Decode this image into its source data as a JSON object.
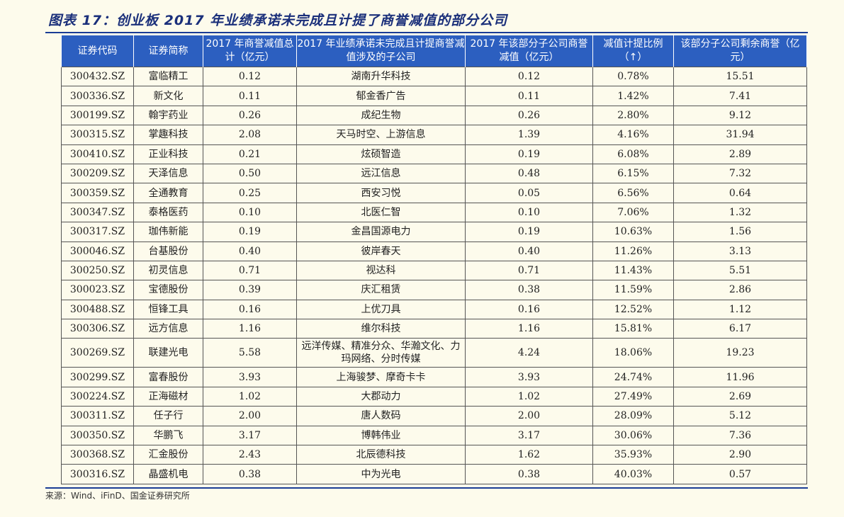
{
  "title": "图表 17：创业板 2017 年业绩承诺未完成且计提了商誉减值的部分公司",
  "headers": [
    "证券代码",
    "证券简称",
    "2017 年商誉减值总计（亿元）",
    "2017 年业绩承诺未完成且计提商誉减值涉及的子公司",
    "2017 年该部分子公司商誉减值（亿元）",
    "减值计提比例（↑）",
    "该部分子公司剩余商誉（亿元）"
  ],
  "rows": [
    [
      "300432.SZ",
      "富临精工",
      "0.12",
      "湖南升华科技",
      "0.12",
      "0.78%",
      "15.51"
    ],
    [
      "300336.SZ",
      "新文化",
      "0.11",
      "郁金香广告",
      "0.11",
      "1.42%",
      "7.41"
    ],
    [
      "300199.SZ",
      "翰宇药业",
      "0.26",
      "成纪生物",
      "0.26",
      "2.80%",
      "9.12"
    ],
    [
      "300315.SZ",
      "掌趣科技",
      "2.08",
      "天马时空、上游信息",
      "1.39",
      "4.16%",
      "31.94"
    ],
    [
      "300410.SZ",
      "正业科技",
      "0.21",
      "炫硕智造",
      "0.19",
      "6.08%",
      "2.89"
    ],
    [
      "300209.SZ",
      "天泽信息",
      "0.50",
      "远江信息",
      "0.48",
      "6.15%",
      "7.32"
    ],
    [
      "300359.SZ",
      "全通教育",
      "0.25",
      "西安习悦",
      "0.05",
      "6.56%",
      "0.64"
    ],
    [
      "300347.SZ",
      "泰格医药",
      "0.10",
      "北医仁智",
      "0.10",
      "7.06%",
      "1.32"
    ],
    [
      "300317.SZ",
      "珈伟新能",
      "0.19",
      "金昌国源电力",
      "0.19",
      "10.63%",
      "1.56"
    ],
    [
      "300046.SZ",
      "台基股份",
      "0.40",
      "彼岸春天",
      "0.40",
      "11.26%",
      "3.13"
    ],
    [
      "300250.SZ",
      "初灵信息",
      "0.71",
      "视达科",
      "0.71",
      "11.43%",
      "5.51"
    ],
    [
      "300023.SZ",
      "宝德股份",
      "0.39",
      "庆汇租赁",
      "0.38",
      "11.59%",
      "2.86"
    ],
    [
      "300488.SZ",
      "恒锋工具",
      "0.16",
      "上优刀具",
      "0.16",
      "12.52%",
      "1.12"
    ],
    [
      "300306.SZ",
      "远方信息",
      "1.16",
      "维尔科技",
      "1.16",
      "15.81%",
      "6.17"
    ],
    [
      "300269.SZ",
      "联建光电",
      "5.58",
      "远洋传媒、精准分众、华瀚文化、力玛网络、分时传媒",
      "4.24",
      "18.06%",
      "19.23"
    ],
    [
      "300299.SZ",
      "富春股份",
      "3.93",
      "上海骏梦、摩奇卡卡",
      "3.93",
      "24.74%",
      "11.96"
    ],
    [
      "300224.SZ",
      "正海磁材",
      "1.02",
      "大郡动力",
      "1.02",
      "27.49%",
      "2.69"
    ],
    [
      "300311.SZ",
      "任子行",
      "2.00",
      "唐人数码",
      "2.00",
      "28.09%",
      "5.12"
    ],
    [
      "300350.SZ",
      "华鹏飞",
      "3.17",
      "博韩伟业",
      "3.17",
      "30.06%",
      "7.36"
    ],
    [
      "300368.SZ",
      "汇金股份",
      "2.43",
      "北辰德科技",
      "1.62",
      "35.93%",
      "2.90"
    ],
    [
      "300316.SZ",
      "晶盛机电",
      "0.38",
      "中为光电",
      "0.38",
      "40.03%",
      "0.57"
    ]
  ],
  "source": "来源：Wind、iFinD、国金证券研究所",
  "colors": {
    "header_bg": "#2c5fc0",
    "header_text": "#ffffff",
    "title_text": "#1a2f7a",
    "rule": "#1a3d95",
    "page_bg": "#fdfbec"
  }
}
